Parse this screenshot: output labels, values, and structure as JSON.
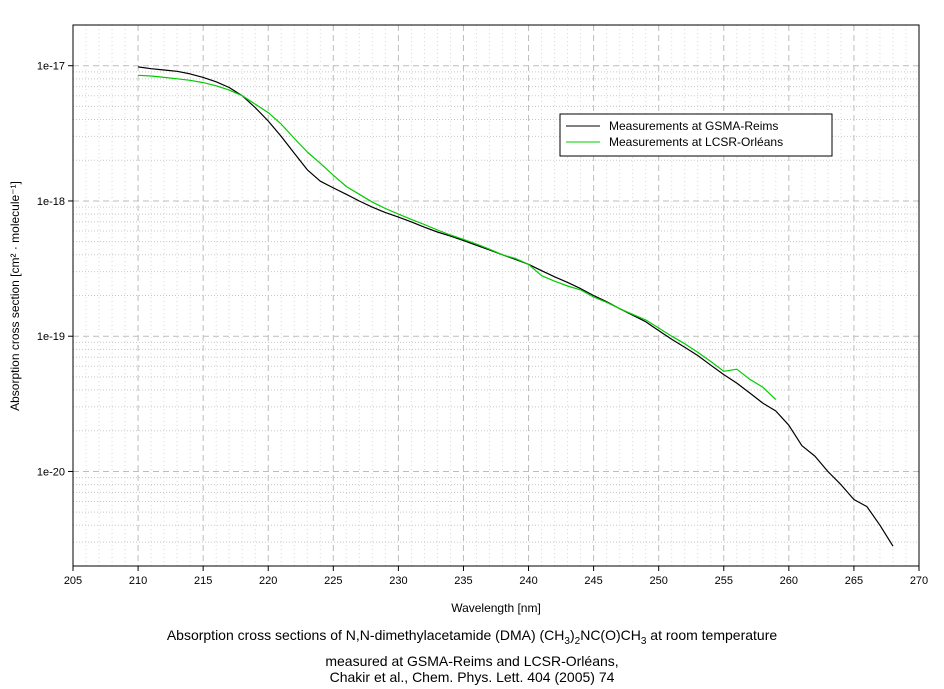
{
  "chart_data": {
    "type": "line",
    "xlabel": "Wavelength [nm]",
    "ylabel": "Absorption cross section [cm² · molecule⁻¹]",
    "xlim": [
      205,
      270
    ],
    "ylim": [
      2e-21,
      2e-17
    ],
    "yscale": "log",
    "grid": true,
    "legend_position": "top-right",
    "x_ticks": [
      "205",
      "210",
      "215",
      "220",
      "225",
      "230",
      "235",
      "240",
      "245",
      "250",
      "255",
      "260",
      "265",
      "270"
    ],
    "y_ticks": [
      "1e-17",
      "1e-18",
      "1e-19",
      "1e-20"
    ],
    "series": [
      {
        "name": "Measurements at GSMA-Reims",
        "color": "#000000",
        "x": [
          210,
          211,
          212,
          213,
          214,
          215,
          216,
          217,
          218,
          219,
          220,
          221,
          222,
          223,
          224,
          225,
          226,
          227,
          228,
          229,
          230,
          231,
          232,
          233,
          234,
          235,
          236,
          237,
          238,
          239,
          240,
          241,
          242,
          243,
          244,
          245,
          246,
          247,
          248,
          249,
          250,
          251,
          252,
          253,
          254,
          255,
          256,
          257,
          258,
          259,
          260,
          261,
          262,
          263,
          264,
          265,
          266,
          267,
          268
        ],
        "y": [
          9.8e-18,
          9.5e-18,
          9.3e-18,
          9.1e-18,
          8.7e-18,
          8.2e-18,
          7.6e-18,
          6.9e-18,
          6e-18,
          4.9e-18,
          3.9e-18,
          3e-18,
          2.25e-18,
          1.7e-18,
          1.4e-18,
          1.25e-18,
          1.12e-18,
          1e-18,
          9e-19,
          8.2e-19,
          7.6e-19,
          7e-19,
          6.4e-19,
          5.9e-19,
          5.5e-19,
          5.1e-19,
          4.7e-19,
          4.35e-19,
          4e-19,
          3.7e-19,
          3.4e-19,
          3.05e-19,
          2.75e-19,
          2.5e-19,
          2.25e-19,
          2e-19,
          1.8e-19,
          1.6e-19,
          1.43e-19,
          1.28e-19,
          1.1e-19,
          9.5e-20,
          8.3e-20,
          7.2e-20,
          6.1e-20,
          5.2e-20,
          4.5e-20,
          3.8e-20,
          3.2e-20,
          2.8e-20,
          2.2e-20,
          1.55e-20,
          1.3e-20,
          1e-20,
          8e-21,
          6.2e-21,
          5.5e-21,
          4e-21,
          2.8e-21
        ]
      },
      {
        "name": "Measurements at LCSR-Orléans",
        "color": "#00cc00",
        "x": [
          210,
          211,
          212,
          213,
          214,
          215,
          216,
          217,
          218,
          219,
          220,
          221,
          222,
          223,
          224,
          225,
          226,
          227,
          228,
          229,
          230,
          231,
          232,
          233,
          234,
          235,
          236,
          237,
          238,
          239,
          240,
          241,
          242,
          243,
          244,
          245,
          246,
          247,
          248,
          249,
          250,
          251,
          252,
          253,
          254,
          255,
          256,
          257,
          258,
          259
        ],
        "y": [
          8.5e-18,
          8.4e-18,
          8.2e-18,
          8e-18,
          7.8e-18,
          7.5e-18,
          7.1e-18,
          6.6e-18,
          6e-18,
          5.2e-18,
          4.5e-18,
          3.7e-18,
          2.9e-18,
          2.3e-18,
          1.9e-18,
          1.55e-18,
          1.28e-18,
          1.12e-18,
          9.8e-19,
          8.8e-19,
          8e-19,
          7.3e-19,
          6.7e-19,
          6.1e-19,
          5.6e-19,
          5.2e-19,
          4.8e-19,
          4.4e-19,
          4e-19,
          3.75e-19,
          3.4e-19,
          2.8e-19,
          2.55e-19,
          2.35e-19,
          2.2e-19,
          1.95e-19,
          1.78e-19,
          1.6e-19,
          1.45e-19,
          1.32e-19,
          1.15e-19,
          1e-19,
          8.8e-20,
          7.6e-20,
          6.5e-20,
          5.5e-20,
          5.7e-20,
          4.8e-20,
          4.2e-20,
          3.4e-20
        ]
      }
    ]
  },
  "caption": {
    "line1_a": "Absorption cross sections of N,N-dimethylacetamide (DMA) (CH",
    "line1_s1": "3",
    "line1_b": ")",
    "line1_s2": "2",
    "line1_c": "NC(O)CH",
    "line1_s3": "3",
    "line1_d": " at room temperature",
    "line2": "measured at GSMA-Reims and LCSR-Orléans,",
    "line3": "Chakir et al., Chem. Phys. Lett. 404 (2005) 74"
  }
}
